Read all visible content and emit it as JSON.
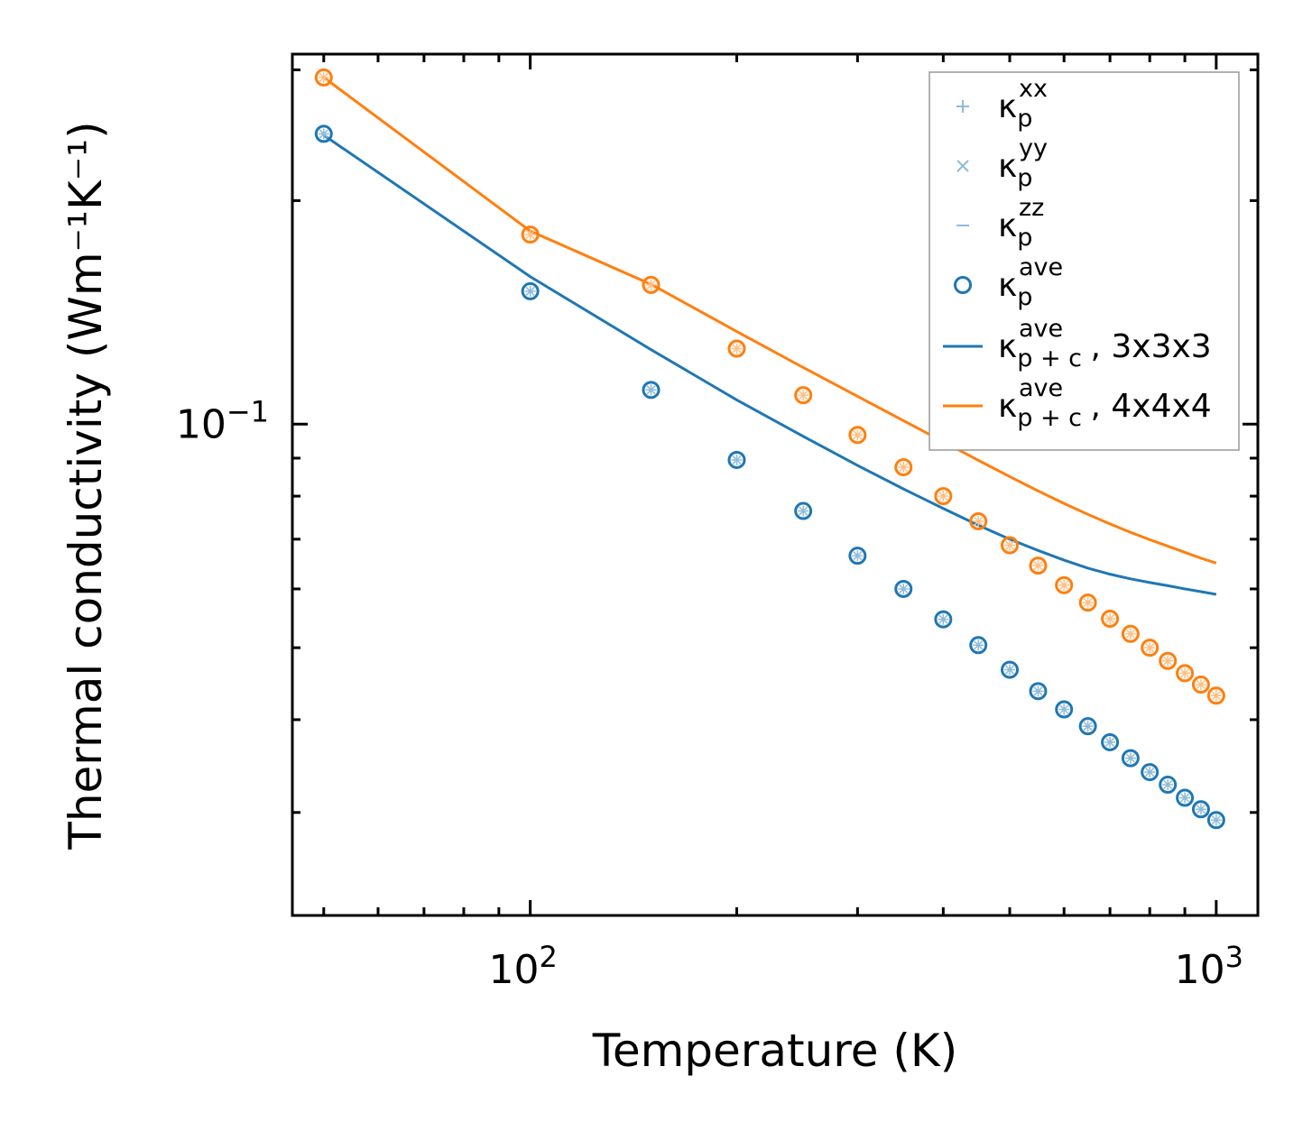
{
  "chart_data": {
    "type": "scatter",
    "xscale": "log",
    "yscale": "log",
    "xlim": [
      45,
      1150
    ],
    "ylim": [
      0.0218,
      0.315
    ],
    "xlabel": "Temperature (K)",
    "ylabel": "Thermal conductivity (Wm⁻¹K⁻¹)",
    "xticks": [
      {
        "value": 100,
        "base": "10",
        "exp": "2"
      },
      {
        "value": 1000,
        "base": "10",
        "exp": "3"
      }
    ],
    "yticks": [
      {
        "value": 0.1,
        "base": "10",
        "exp": "−1"
      }
    ],
    "x": [
      50,
      100,
      150,
      200,
      250,
      300,
      350,
      400,
      450,
      500,
      550,
      600,
      650,
      700,
      750,
      800,
      850,
      900,
      950,
      1000
    ],
    "series": [
      {
        "name": "κ_p^ave (3x3x3)",
        "kind": "points",
        "color": "#1f77b4",
        "values": [
          0.246,
          0.151,
          0.1112,
          0.0895,
          0.0764,
          0.0665,
          0.06,
          0.0546,
          0.0504,
          0.0467,
          0.0437,
          0.0413,
          0.0392,
          0.0373,
          0.0355,
          0.034,
          0.0327,
          0.0314,
          0.0303,
          0.0293
        ]
      },
      {
        "name": "κ_p^ave (4x4x4)",
        "kind": "points",
        "color": "#ff7f0e",
        "values": [
          0.293,
          0.18,
          0.154,
          0.1264,
          0.1094,
          0.0967,
          0.0875,
          0.08,
          0.074,
          0.0687,
          0.0645,
          0.0607,
          0.0575,
          0.0547,
          0.0522,
          0.05,
          0.048,
          0.0462,
          0.0446,
          0.0431
        ]
      },
      {
        "name": "κ_p+c^ave, 3x3x3",
        "kind": "line",
        "color": "#1f77b4",
        "values": [
          0.245,
          0.158,
          0.126,
          0.1078,
          0.0963,
          0.088,
          0.0818,
          0.077,
          0.0731,
          0.07,
          0.0676,
          0.0656,
          0.064,
          0.0628,
          0.0619,
          0.0612,
          0.0606,
          0.06,
          0.0595,
          0.059
        ]
      },
      {
        "name": "κ_p+c^ave, 4x4x4",
        "kind": "line",
        "color": "#ff7f0e",
        "values": [
          0.293,
          0.182,
          0.1543,
          0.1333,
          0.1192,
          0.109,
          0.1011,
          0.0947,
          0.0894,
          0.085,
          0.0813,
          0.0782,
          0.0756,
          0.0734,
          0.0715,
          0.0699,
          0.0685,
          0.0672,
          0.066,
          0.065
        ]
      }
    ],
    "legend": {
      "position": "upper right",
      "items": [
        {
          "marker": "plus",
          "color": "#8fbbd9",
          "sym": "κ",
          "sub": "p",
          "sup": "xx",
          "suffix": ""
        },
        {
          "marker": "cross",
          "color": "#8fbbd9",
          "sym": "κ",
          "sub": "p",
          "sup": "yy",
          "suffix": ""
        },
        {
          "marker": "dash",
          "color": "#8fbbd9",
          "sym": "κ",
          "sub": "p",
          "sup": "zz",
          "suffix": ""
        },
        {
          "marker": "circle",
          "color": "#1f77b4",
          "sym": "κ",
          "sub": "p",
          "sup": "ave",
          "suffix": ""
        },
        {
          "marker": "line",
          "color": "#1f77b4",
          "sym": "κ",
          "sub": "p + c",
          "sup": "ave",
          "suffix": ", 3x3x3"
        },
        {
          "marker": "line",
          "color": "#ff7f0e",
          "sym": "κ",
          "sub": "p + c",
          "sup": "ave",
          "suffix": ", 4x4x4"
        }
      ]
    }
  }
}
